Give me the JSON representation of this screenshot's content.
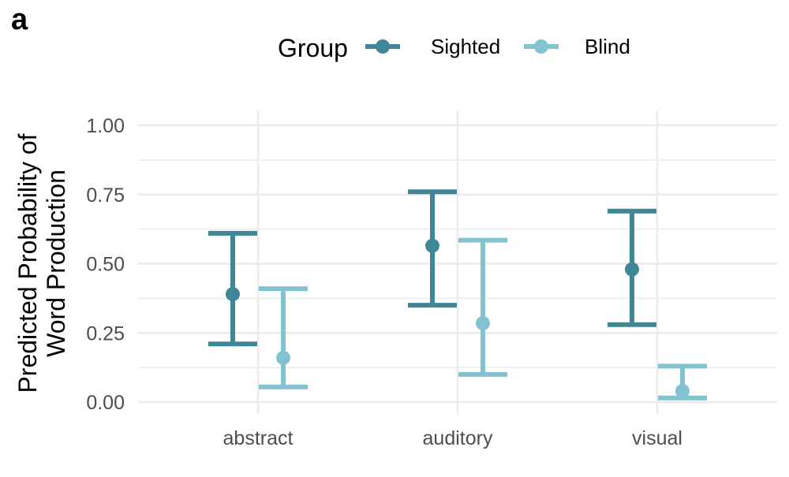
{
  "panel_label": "a",
  "legend_title": "Group",
  "colors": {
    "Sighted": "#3f8796",
    "Blind": "#83c2cf",
    "grid": "#ebebeb"
  },
  "chart_data": {
    "type": "errorbar",
    "ylabel_lines": [
      "Predicted Probability of",
      "Word Production"
    ],
    "xlabel": "",
    "categories": [
      "abstract",
      "auditory",
      "visual"
    ],
    "ylim": [
      0,
      1
    ],
    "yticks": [
      0,
      0.25,
      0.5,
      0.75,
      1
    ],
    "ytick_labels": [
      "0.00",
      "0.25",
      "0.50",
      "0.75",
      "1.00"
    ],
    "legend_position": "top",
    "grid": true,
    "series": [
      {
        "name": "Sighted",
        "values": [
          0.39,
          0.565,
          0.48
        ],
        "lower": [
          0.21,
          0.35,
          0.28
        ],
        "upper": [
          0.61,
          0.76,
          0.69
        ]
      },
      {
        "name": "Blind",
        "values": [
          0.16,
          0.285,
          0.04
        ],
        "lower": [
          0.055,
          0.1,
          0.015
        ],
        "upper": [
          0.41,
          0.585,
          0.13
        ]
      }
    ]
  }
}
